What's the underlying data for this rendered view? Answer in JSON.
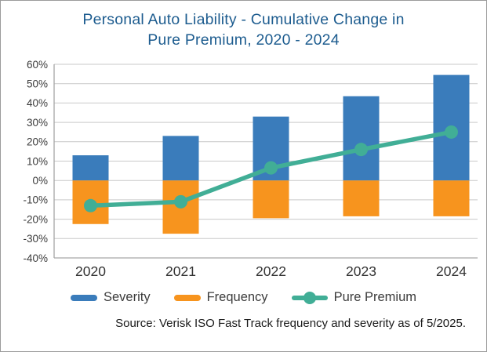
{
  "header": {
    "title_line1": "Personal Auto Liability - Cumulative Change in",
    "title_line2": "Pure Premium, 2020 - 2024"
  },
  "chart_data": {
    "type": "bar+line",
    "title": "Personal Auto Liability - Cumulative Change in Pure Premium, 2020 - 2024",
    "categories": [
      "2020",
      "2021",
      "2022",
      "2023",
      "2024"
    ],
    "series": [
      {
        "name": "Severity",
        "type": "bar",
        "color": "#3a7cbb",
        "values": [
          13,
          23,
          33,
          43.5,
          54.5
        ]
      },
      {
        "name": "Frequency",
        "type": "bar",
        "color": "#f7941e",
        "values": [
          -22.5,
          -27.5,
          -19.5,
          -18.5,
          -18.5
        ]
      },
      {
        "name": "Pure Premium",
        "type": "line",
        "color": "#41ae96",
        "values": [
          -13,
          -11,
          6.5,
          16,
          25
        ]
      }
    ],
    "ylim": [
      -40,
      60
    ],
    "ytick_step": 10,
    "ytick_labels": [
      "60%",
      "50%",
      "40%",
      "30%",
      "20%",
      "10%",
      "0%",
      "-10%",
      "-20%",
      "-30%",
      "-40%"
    ],
    "unit": "%",
    "grid": true,
    "legend_position": "bottom"
  },
  "legend": {
    "items": [
      {
        "label": "Severity",
        "color": "#3a7cbb",
        "marker": "bar"
      },
      {
        "label": "Frequency",
        "color": "#f7941e",
        "marker": "bar"
      },
      {
        "label": "Pure Premium",
        "color": "#41ae96",
        "marker": "line-dot"
      }
    ]
  },
  "footer": {
    "source": "Source: Verisk ISO Fast Track frequency and severity as of 5/2025."
  },
  "colors": {
    "title_text": "#1d5c8f",
    "severity": "#3a7cbb",
    "frequency": "#f7941e",
    "pure_premium": "#41ae96",
    "gridline": "#c9c9c9",
    "axis_line": "#a6a6a6",
    "axis_text": "#3c3c3c"
  }
}
